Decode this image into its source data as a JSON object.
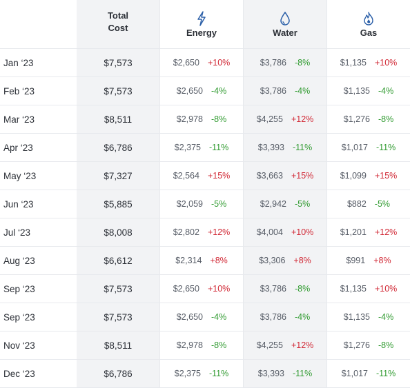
{
  "header": {
    "total_cost": [
      "Total",
      "Cost"
    ],
    "energy": "Energy",
    "water": "Water",
    "gas": "Gas"
  },
  "colors": {
    "increase": "#d12835",
    "decrease": "#2f9a2f",
    "icon": "#2b5fa8"
  },
  "icons": {
    "energy": "lightning-bolt-icon",
    "water": "water-drop-icon",
    "gas": "flame-icon"
  },
  "rows": [
    {
      "month": "Jan ‘23",
      "total": "$7,573",
      "energy": {
        "value": "$2,650",
        "change": "+10%"
      },
      "water": {
        "value": "$3,786",
        "change": "-8%"
      },
      "gas": {
        "value": "$1,135",
        "change": "+10%"
      }
    },
    {
      "month": "Feb ‘23",
      "total": "$7,573",
      "energy": {
        "value": "$2,650",
        "change": "-4%"
      },
      "water": {
        "value": "$3,786",
        "change": "-4%"
      },
      "gas": {
        "value": "$1,135",
        "change": "-4%"
      }
    },
    {
      "month": "Mar ‘23",
      "total": "$8,511",
      "energy": {
        "value": "$2,978",
        "change": "-8%"
      },
      "water": {
        "value": "$4,255",
        "change": "+12%"
      },
      "gas": {
        "value": "$1,276",
        "change": "-8%"
      }
    },
    {
      "month": "Apr ‘23",
      "total": "$6,786",
      "energy": {
        "value": "$2,375",
        "change": "-11%"
      },
      "water": {
        "value": "$3,393",
        "change": "-11%"
      },
      "gas": {
        "value": "$1,017",
        "change": "-11%"
      }
    },
    {
      "month": "May ‘23",
      "total": "$7,327",
      "energy": {
        "value": "$2,564",
        "change": "+15%"
      },
      "water": {
        "value": "$3,663",
        "change": "+15%"
      },
      "gas": {
        "value": "$1,099",
        "change": "+15%"
      }
    },
    {
      "month": "Jun ‘23",
      "total": "$5,885",
      "energy": {
        "value": "$2,059",
        "change": "-5%"
      },
      "water": {
        "value": "$2,942",
        "change": "-5%"
      },
      "gas": {
        "value": "$882",
        "change": "-5%"
      }
    },
    {
      "month": "Jul ‘23",
      "total": "$8,008",
      "energy": {
        "value": "$2,802",
        "change": "+12%"
      },
      "water": {
        "value": "$4,004",
        "change": "+10%"
      },
      "gas": {
        "value": "$1,201",
        "change": "+12%"
      }
    },
    {
      "month": "Aug ‘23",
      "total": "$6,612",
      "energy": {
        "value": "$2,314",
        "change": "+8%"
      },
      "water": {
        "value": "$3,306",
        "change": "+8%"
      },
      "gas": {
        "value": "$991",
        "change": "+8%"
      }
    },
    {
      "month": "Sep ‘23",
      "total": "$7,573",
      "energy": {
        "value": "$2,650",
        "change": "+10%"
      },
      "water": {
        "value": "$3,786",
        "change": "-8%"
      },
      "gas": {
        "value": "$1,135",
        "change": "+10%"
      }
    },
    {
      "month": "Sep ‘23",
      "total": "$7,573",
      "energy": {
        "value": "$2,650",
        "change": "-4%"
      },
      "water": {
        "value": "$3,786",
        "change": "-4%"
      },
      "gas": {
        "value": "$1,135",
        "change": "-4%"
      }
    },
    {
      "month": "Nov ‘23",
      "total": "$8,511",
      "energy": {
        "value": "$2,978",
        "change": "-8%"
      },
      "water": {
        "value": "$4,255",
        "change": "+12%"
      },
      "gas": {
        "value": "$1,276",
        "change": "-8%"
      }
    },
    {
      "month": "Dec ‘23",
      "total": "$6,786",
      "energy": {
        "value": "$2,375",
        "change": "-11%"
      },
      "water": {
        "value": "$3,393",
        "change": "-11%"
      },
      "gas": {
        "value": "$1,017",
        "change": "-11%"
      }
    }
  ]
}
